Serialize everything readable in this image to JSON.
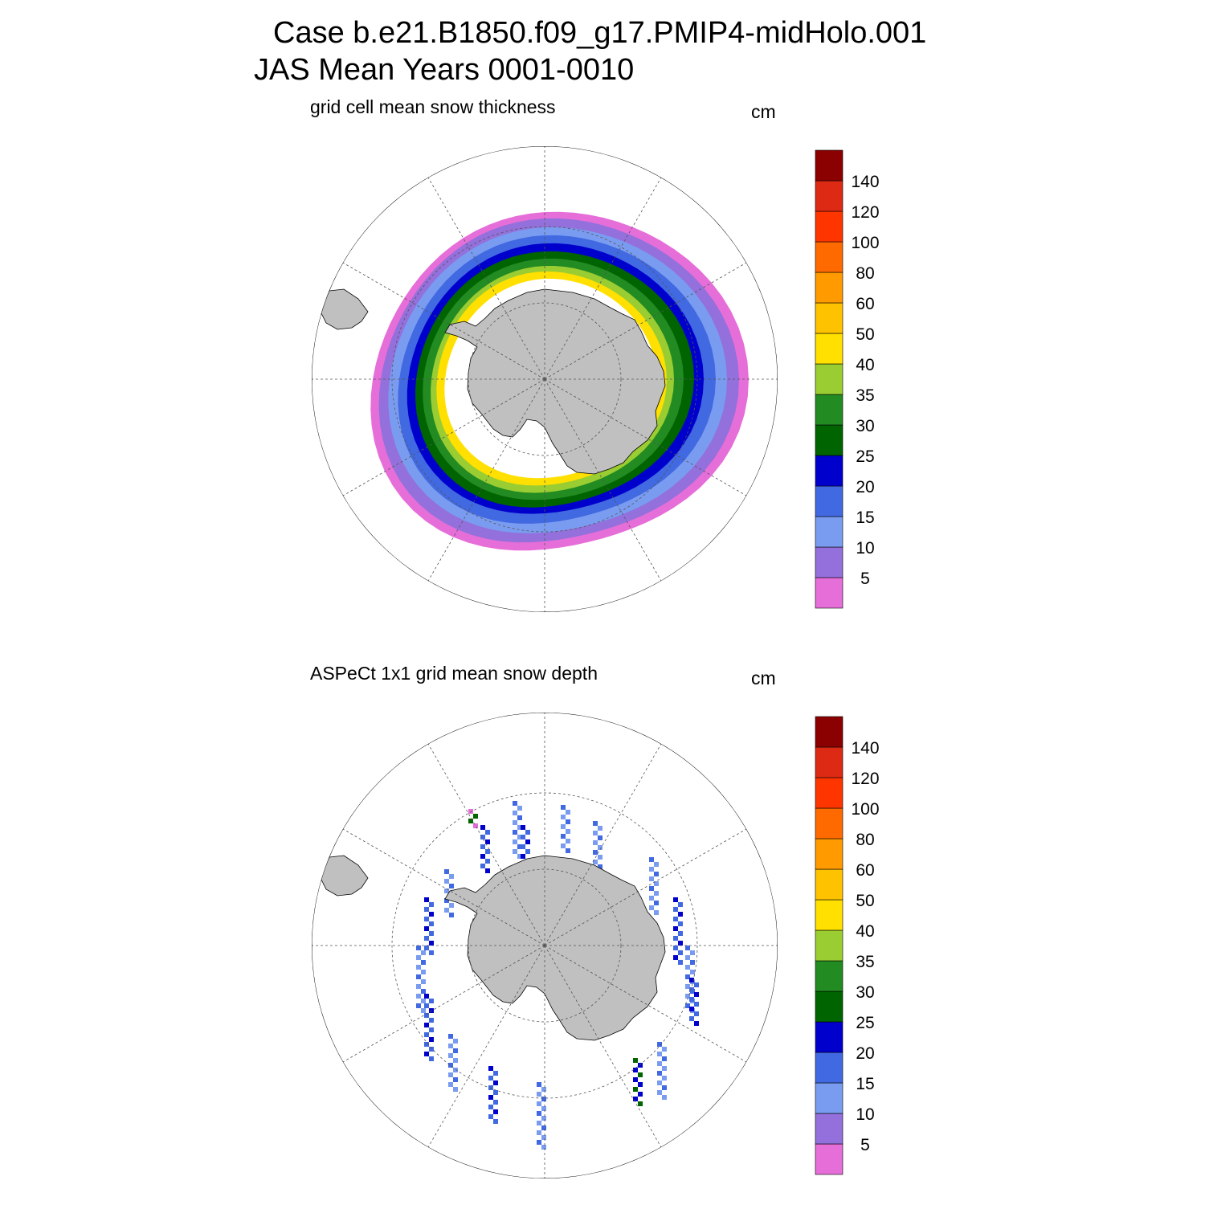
{
  "header": {
    "case_line": "Case b.e21.B1850.f09_g17.PMIP4-midHolo.001",
    "period_line": "JAS Mean   Years 0001-0010"
  },
  "colorbar": {
    "labels": [
      "5",
      "10",
      "15",
      "20",
      "25",
      "30",
      "35",
      "40",
      "50",
      "60",
      "80",
      "100",
      "120",
      "140"
    ],
    "colors": [
      "#e66ed9",
      "#9370db",
      "#7a9cf0",
      "#4169e1",
      "#0000cd",
      "#006400",
      "#228b22",
      "#9acd32",
      "#ffe000",
      "#ffc200",
      "#ff9a00",
      "#ff6a00",
      "#ff3500",
      "#dc2a14",
      "#8b0000"
    ]
  },
  "land_color": "#c0c0c0",
  "panels": [
    {
      "title": "grid cell mean snow thickness",
      "units": "cm",
      "kind": "model"
    },
    {
      "title": "ASPeCt 1x1 grid mean snow depth",
      "units": "cm",
      "kind": "obs"
    }
  ]
}
